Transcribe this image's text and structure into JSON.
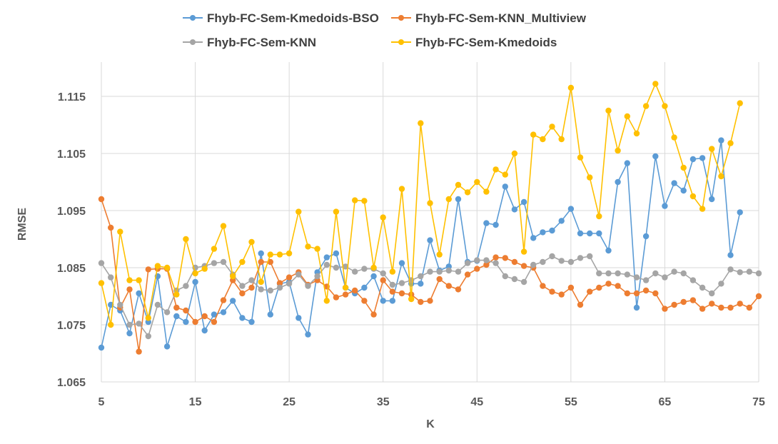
{
  "chart_data": {
    "type": "line",
    "title": "",
    "xlabel": "K",
    "ylabel": "RMSE",
    "xlim": [
      5,
      75
    ],
    "ylim": [
      1.065,
      1.12
    ],
    "x_ticks": [
      "5",
      "15",
      "25",
      "35",
      "45",
      "55",
      "65",
      "75"
    ],
    "y_ticks": [
      "1.065",
      "1.075",
      "1.085",
      "1.095",
      "1.105",
      "1.115"
    ],
    "grid": true,
    "legend_position": "top",
    "x": [
      5,
      6,
      7,
      8,
      9,
      10,
      11,
      12,
      13,
      14,
      15,
      16,
      17,
      18,
      19,
      20,
      21,
      22,
      23,
      24,
      25,
      26,
      27,
      28,
      29,
      30,
      31,
      32,
      33,
      34,
      35,
      36,
      37,
      38,
      39,
      40,
      41,
      42,
      43,
      44,
      45,
      46,
      47,
      48,
      49,
      50,
      51,
      52,
      53,
      54,
      55,
      56,
      57,
      58,
      59,
      60,
      61,
      62,
      63,
      64,
      65,
      66,
      67,
      68,
      69,
      70,
      71,
      72,
      73,
      74,
      75
    ],
    "series": [
      {
        "name": "Fhyb-FC-Sem-Kmedoids-BSO",
        "color": "#5b9bd5",
        "x": [
          5,
          6,
          7,
          8,
          9,
          10,
          11,
          12,
          13,
          14,
          15,
          16,
          17,
          18,
          19,
          20,
          21,
          22,
          23,
          24,
          25,
          26,
          27,
          28,
          29,
          30,
          31,
          32,
          33,
          34,
          35,
          36,
          37,
          38,
          39,
          40,
          41,
          42,
          43,
          44,
          45,
          46,
          47,
          48,
          49,
          50,
          51,
          52,
          53,
          54,
          55,
          56,
          57,
          58,
          59,
          60,
          61,
          62,
          63,
          64,
          65,
          66,
          67,
          68,
          69,
          70,
          71,
          72,
          73
        ],
        "values": [
          1.071,
          1.0785,
          1.0775,
          1.0735,
          1.0805,
          1.0755,
          1.0835,
          1.0712,
          1.0765,
          1.0755,
          1.0825,
          1.074,
          1.0768,
          1.0772,
          1.0792,
          1.0762,
          1.0755,
          1.0875,
          1.0768,
          1.0822,
          1.0825,
          1.0762,
          1.0733,
          1.0842,
          1.0868,
          1.0875,
          1.0815,
          1.0805,
          1.0815,
          1.0835,
          1.0792,
          1.0792,
          1.0858,
          1.0822,
          1.0822,
          1.0898,
          1.0845,
          1.0852,
          1.097,
          1.086,
          1.0862,
          1.0928,
          1.0925,
          1.0992,
          1.0952,
          1.0965,
          1.0902,
          1.0912,
          1.0915,
          1.0932,
          1.0953,
          1.091,
          1.091,
          1.091,
          1.088,
          1.1,
          1.1033,
          1.078,
          1.0905,
          1.1045,
          1.0958,
          1.0998,
          1.0985,
          1.104,
          1.1042,
          1.097,
          1.1073,
          1.0872,
          1.0947
        ]
      },
      {
        "name": "Fhyb-FC-Sem-KNN_Multiview",
        "color": "#ed7d31",
        "x": [
          5,
          6,
          7,
          8,
          9,
          10,
          11,
          12,
          13,
          14,
          15,
          16,
          17,
          18,
          19,
          20,
          21,
          22,
          23,
          24,
          25,
          26,
          27,
          28,
          29,
          30,
          31,
          32,
          33,
          34,
          35,
          36,
          37,
          38,
          39,
          40,
          41,
          42,
          43,
          44,
          45,
          46,
          47,
          48,
          49,
          50,
          51,
          52,
          53,
          54,
          55,
          56,
          57,
          58,
          59,
          60,
          61,
          62,
          63,
          64,
          65,
          66,
          67,
          68,
          69,
          70,
          71,
          72,
          73,
          74,
          75
        ],
        "values": [
          1.097,
          1.092,
          1.078,
          1.0812,
          1.0703,
          1.0847,
          1.0848,
          1.0848,
          1.078,
          1.0775,
          1.0755,
          1.0765,
          1.0755,
          1.0793,
          1.0828,
          1.0805,
          1.0815,
          1.086,
          1.086,
          1.0823,
          1.0833,
          1.0842,
          1.082,
          1.0828,
          1.0817,
          1.0798,
          1.0803,
          1.081,
          1.0792,
          1.0768,
          1.0828,
          1.0808,
          1.0805,
          1.0803,
          1.079,
          1.0792,
          1.083,
          1.0818,
          1.0812,
          1.0838,
          1.0848,
          1.0855,
          1.0868,
          1.0867,
          1.086,
          1.0853,
          1.085,
          1.0818,
          1.0808,
          1.0803,
          1.0815,
          1.0785,
          1.0808,
          1.0815,
          1.0822,
          1.0818,
          1.0805,
          1.0805,
          1.081,
          1.0805,
          1.0778,
          1.0785,
          1.079,
          1.0793,
          1.0778,
          1.0787,
          1.078,
          1.078,
          1.0787,
          1.078,
          1.08
        ]
      },
      {
        "name": "Fhyb-FC-Sem-KNN",
        "color": "#a5a5a5",
        "x": [
          5,
          6,
          7,
          8,
          9,
          10,
          11,
          12,
          13,
          14,
          15,
          16,
          17,
          18,
          19,
          20,
          21,
          22,
          23,
          24,
          25,
          26,
          27,
          28,
          29,
          30,
          31,
          32,
          33,
          34,
          35,
          36,
          37,
          38,
          39,
          40,
          41,
          42,
          43,
          44,
          45,
          46,
          47,
          48,
          49,
          50,
          51,
          52,
          53,
          54,
          55,
          56,
          57,
          58,
          59,
          60,
          61,
          62,
          63,
          64,
          65,
          66,
          67,
          68,
          69,
          70,
          71,
          72,
          73,
          74,
          75
        ],
        "values": [
          1.0858,
          1.0833,
          1.0785,
          1.075,
          1.0752,
          1.073,
          1.0785,
          1.0772,
          1.081,
          1.0818,
          1.085,
          1.0853,
          1.0858,
          1.086,
          1.0838,
          1.0818,
          1.0828,
          1.0812,
          1.081,
          1.0815,
          1.0822,
          1.0838,
          1.0818,
          1.0835,
          1.0855,
          1.085,
          1.0852,
          1.0843,
          1.0848,
          1.0848,
          1.084,
          1.082,
          1.0823,
          1.0828,
          1.0835,
          1.0843,
          1.0843,
          1.0845,
          1.0843,
          1.0858,
          1.0863,
          1.0863,
          1.0858,
          1.0835,
          1.083,
          1.0825,
          1.0855,
          1.086,
          1.087,
          1.0862,
          1.086,
          1.0867,
          1.087,
          1.084,
          1.084,
          1.084,
          1.0838,
          1.0833,
          1.0828,
          1.084,
          1.0833,
          1.0843,
          1.084,
          1.0828,
          1.0815,
          1.0805,
          1.0822,
          1.0847,
          1.0842,
          1.0843,
          1.084
        ]
      },
      {
        "name": "Fhyb-FC-Sem-Kmedoids",
        "color": "#ffc000",
        "x": [
          5,
          6,
          7,
          8,
          9,
          10,
          11,
          12,
          13,
          14,
          15,
          16,
          17,
          18,
          19,
          20,
          21,
          22,
          23,
          24,
          25,
          26,
          27,
          28,
          29,
          30,
          31,
          32,
          33,
          34,
          35,
          36,
          37,
          38,
          39,
          40,
          41,
          42,
          43,
          44,
          45,
          46,
          47,
          48,
          49,
          50,
          51,
          52,
          53,
          54,
          55,
          56,
          57,
          58,
          59,
          60,
          61,
          62,
          63,
          64,
          65,
          66,
          67,
          68,
          69,
          70,
          71,
          72,
          73
        ],
        "values": [
          1.0823,
          1.075,
          1.0913,
          1.0828,
          1.0828,
          1.0762,
          1.0853,
          1.085,
          1.0803,
          1.09,
          1.084,
          1.0848,
          1.0883,
          1.0923,
          1.0835,
          1.086,
          1.0895,
          1.0825,
          1.0873,
          1.0873,
          1.0875,
          1.0948,
          1.0887,
          1.0883,
          1.0792,
          1.0948,
          1.0815,
          1.0968,
          1.0967,
          1.085,
          1.0938,
          1.0843,
          1.0988,
          1.0795,
          1.1103,
          1.0963,
          1.0873,
          1.097,
          1.0995,
          1.0982,
          1.1,
          1.0983,
          1.1022,
          1.1013,
          1.105,
          1.0878,
          1.1083,
          1.1075,
          1.1097,
          1.1075,
          1.1165,
          1.1043,
          1.1008,
          1.094,
          1.1125,
          1.1055,
          1.1115,
          1.1085,
          1.1133,
          1.1172,
          1.1133,
          1.1078,
          1.1025,
          1.0975,
          1.0953,
          1.1058,
          1.101,
          1.1068,
          1.1138
        ]
      }
    ]
  }
}
